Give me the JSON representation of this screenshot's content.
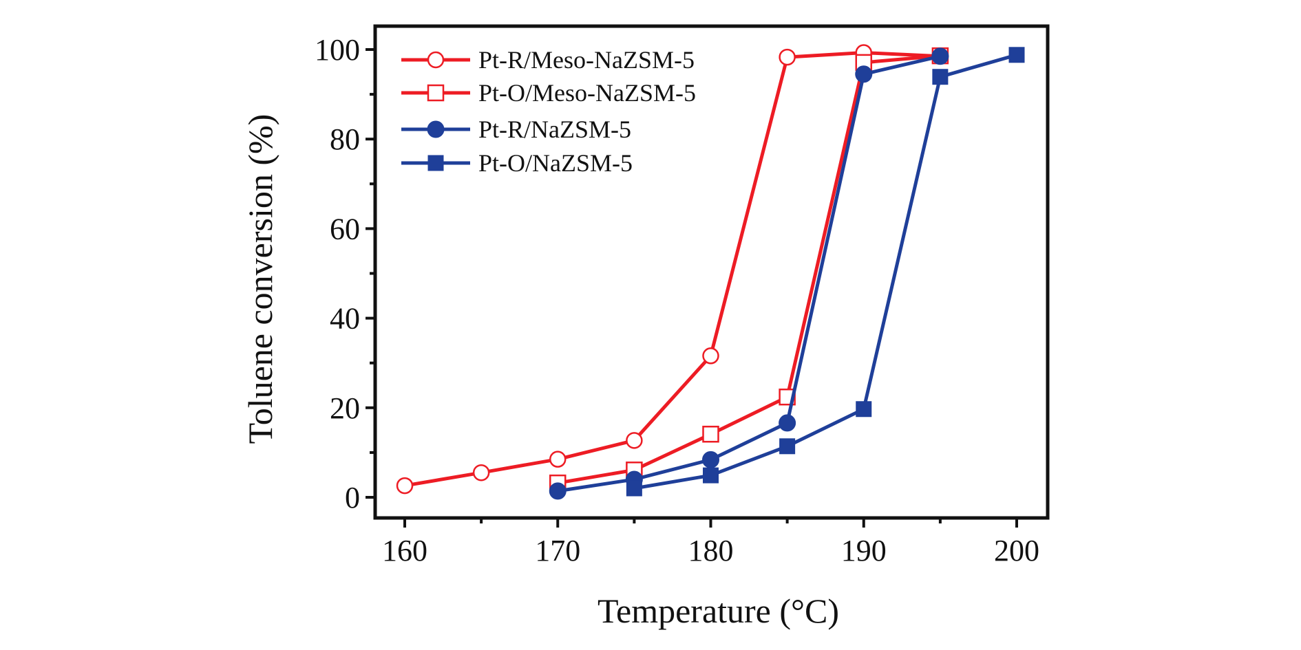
{
  "chart_data": {
    "type": "line",
    "title": "",
    "xlabel": "Temperature (°C)",
    "ylabel": "Toluene conversion (%)",
    "xlim": [
      158,
      202
    ],
    "ylim": [
      -5,
      105
    ],
    "xticks": [
      160,
      170,
      180,
      190,
      200
    ],
    "xticks_minor": [
      165,
      175,
      185,
      195
    ],
    "yticks": [
      0,
      20,
      40,
      60,
      80,
      100
    ],
    "yticks_minor": [
      10,
      30,
      50,
      70,
      90
    ],
    "grid": false,
    "legend_position": "top-left",
    "series": [
      {
        "name": "Pt-R/Meso-NaZSM-5",
        "color": "#ED1C24",
        "marker": "open-circle",
        "x": [
          160,
          165,
          170,
          175,
          180,
          185,
          190,
          195
        ],
        "y": [
          2.6,
          5.5,
          8.5,
          12.7,
          31.6,
          98.3,
          99.3,
          98.5
        ]
      },
      {
        "name": "Pt-O/Meso-NaZSM-5",
        "color": "#ED1C24",
        "marker": "open-square",
        "x": [
          170,
          175,
          180,
          185,
          190,
          195
        ],
        "y": [
          3.2,
          6.1,
          14.1,
          22.4,
          97.1,
          98.6
        ]
      },
      {
        "name": "Pt-R/NaZSM-5",
        "color": "#1F3F99",
        "marker": "filled-circle",
        "x": [
          170,
          175,
          180,
          185,
          190,
          195
        ],
        "y": [
          1.4,
          4.0,
          8.4,
          16.6,
          94.5,
          98.5
        ]
      },
      {
        "name": "Pt-O/NaZSM-5",
        "color": "#1F3F99",
        "marker": "filled-square",
        "x": [
          175,
          180,
          185,
          190,
          195,
          200
        ],
        "y": [
          2.0,
          4.9,
          11.4,
          19.7,
          93.9,
          98.8
        ]
      }
    ]
  }
}
